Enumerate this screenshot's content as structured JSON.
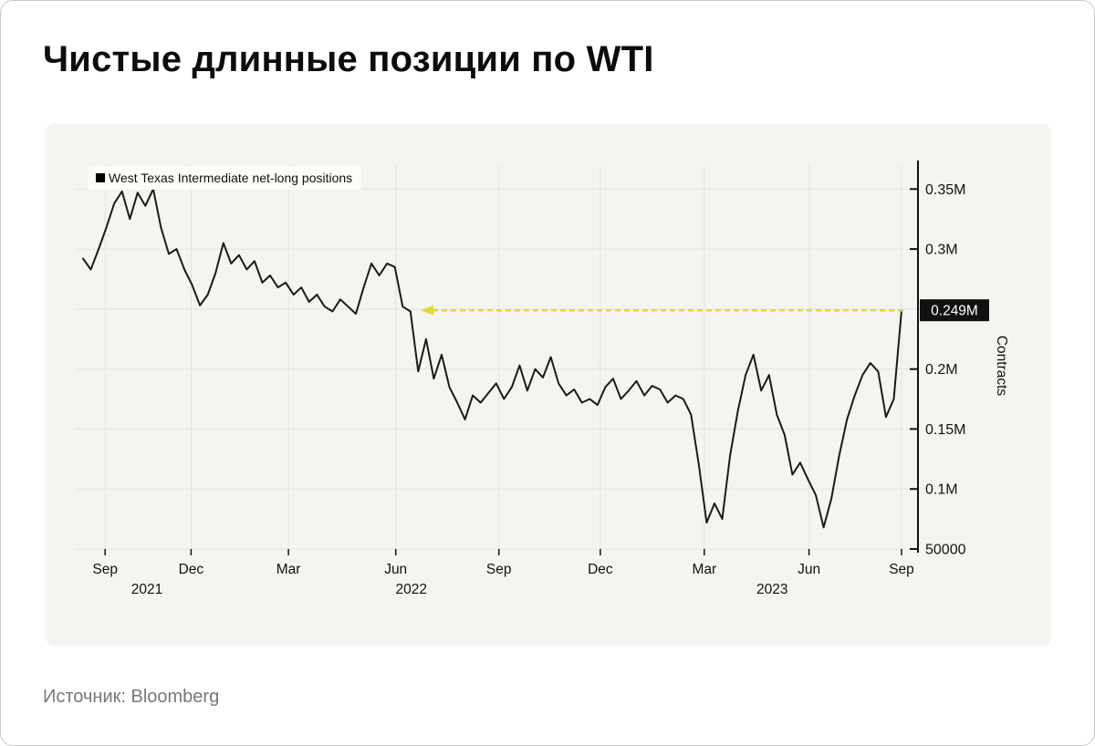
{
  "page": {
    "title": "Чистые длинные позиции по WTI",
    "source": "Источник: Bloomberg"
  },
  "legend": {
    "label": "West Texas Intermediate net-long positions",
    "swatch_color": "#000000"
  },
  "chart_data": {
    "type": "line",
    "title": "Чистые длинные позиции по WTI",
    "ylabel": "Contracts",
    "unit": "contracts (M)",
    "ylim": [
      0.05,
      0.37
    ],
    "grid": true,
    "legend_position": "top-left",
    "colors": {
      "grid": "#e3e3de",
      "axis": "#111111",
      "background": "#f4f4f1"
    },
    "y_ticks": [
      {
        "value": 0.35,
        "label": "0.35M"
      },
      {
        "value": 0.3,
        "label": "0.3M"
      },
      {
        "value": 0.2,
        "label": "0.2M"
      },
      {
        "value": 0.15,
        "label": "0.15M"
      },
      {
        "value": 0.1,
        "label": "0.1M"
      },
      {
        "value": 0.05,
        "label": "50000"
      }
    ],
    "y_gridlines": [
      0.35,
      0.3,
      0.25,
      0.2,
      0.15,
      0.1,
      0.05
    ],
    "x_ticks": [
      {
        "label": "Sep",
        "pos": 0.027
      },
      {
        "label": "Dec",
        "pos": 0.132
      },
      {
        "label": "Mar",
        "pos": 0.251
      },
      {
        "label": "Jun",
        "pos": 0.382
      },
      {
        "label": "Sep",
        "pos": 0.508
      },
      {
        "label": "Dec",
        "pos": 0.632
      },
      {
        "label": "Mar",
        "pos": 0.759
      },
      {
        "label": "Jun",
        "pos": 0.887
      },
      {
        "label": "Sep",
        "pos": 1.0
      }
    ],
    "year_labels": [
      {
        "label": "2021",
        "pos": 0.078
      },
      {
        "label": "2022",
        "pos": 0.401
      },
      {
        "label": "2023",
        "pos": 0.842
      }
    ],
    "annotation": {
      "value": 0.249,
      "label": "0.249M",
      "arrow_start_frac": 0.4125,
      "color": "#e4d836"
    },
    "series": [
      {
        "name": "West Texas Intermediate net-long positions",
        "color": "#1a1a1a",
        "values": [
          0.292,
          0.283,
          0.3,
          0.318,
          0.338,
          0.348,
          0.325,
          0.347,
          0.336,
          0.35,
          0.318,
          0.296,
          0.3,
          0.283,
          0.27,
          0.253,
          0.262,
          0.28,
          0.305,
          0.288,
          0.295,
          0.283,
          0.29,
          0.272,
          0.278,
          0.268,
          0.272,
          0.262,
          0.268,
          0.256,
          0.262,
          0.252,
          0.248,
          0.258,
          0.252,
          0.246,
          0.268,
          0.288,
          0.278,
          0.288,
          0.285,
          0.252,
          0.248,
          0.198,
          0.225,
          0.192,
          0.212,
          0.185,
          0.172,
          0.158,
          0.178,
          0.172,
          0.18,
          0.188,
          0.175,
          0.185,
          0.203,
          0.182,
          0.2,
          0.193,
          0.21,
          0.188,
          0.178,
          0.183,
          0.172,
          0.175,
          0.17,
          0.185,
          0.192,
          0.175,
          0.182,
          0.19,
          0.178,
          0.186,
          0.183,
          0.172,
          0.178,
          0.175,
          0.162,
          0.12,
          0.072,
          0.088,
          0.075,
          0.128,
          0.165,
          0.195,
          0.212,
          0.182,
          0.195,
          0.162,
          0.145,
          0.112,
          0.122,
          0.108,
          0.095,
          0.068,
          0.092,
          0.128,
          0.158,
          0.178,
          0.195,
          0.205,
          0.198,
          0.16,
          0.175,
          0.249
        ]
      }
    ]
  }
}
